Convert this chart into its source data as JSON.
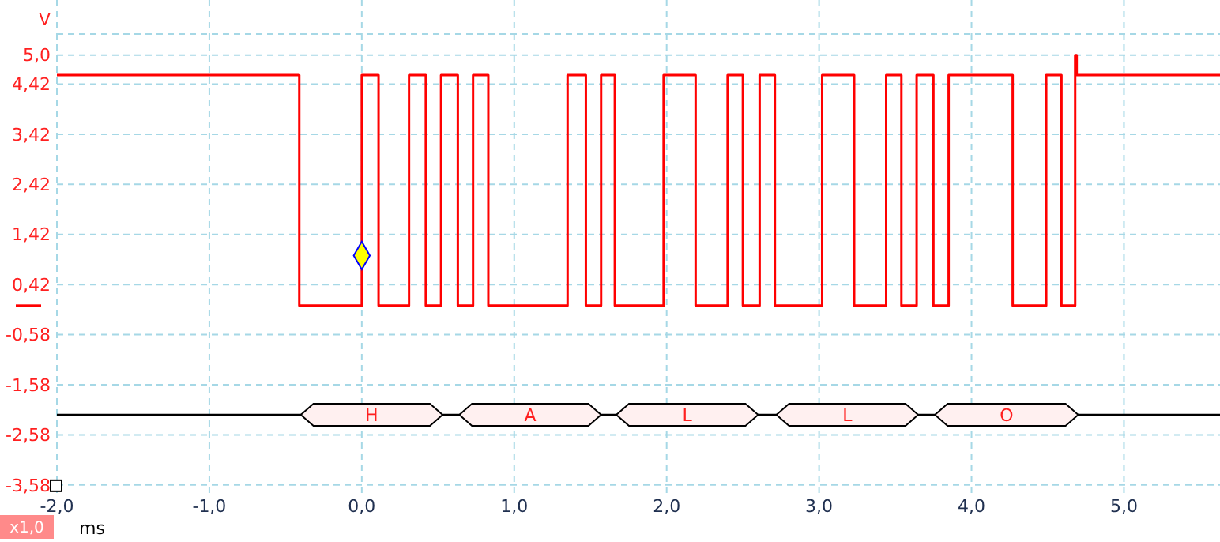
{
  "chart_data": {
    "type": "step",
    "ylabel": "V",
    "xlabel": "ms",
    "annotations": [
      "x1,0"
    ],
    "xlim": [
      -2,
      5.63
    ],
    "ylim": [
      -3.74,
      6.1
    ],
    "xticks": [
      {
        "value": -2,
        "label": "-2,0"
      },
      {
        "value": -1,
        "label": "-1,0"
      },
      {
        "value": 0,
        "label": "0,0"
      },
      {
        "value": 1,
        "label": "1,0"
      },
      {
        "value": 2,
        "label": "2,0"
      },
      {
        "value": 3,
        "label": "3,0"
      },
      {
        "value": 4,
        "label": "4,0"
      },
      {
        "value": 5,
        "label": "5,0"
      }
    ],
    "yticks": [
      {
        "value": 5.42,
        "label": null
      },
      {
        "value": 5,
        "label": "5,0"
      },
      {
        "value": 4.42,
        "label": "4,42"
      },
      {
        "value": 3.42,
        "label": "3,42"
      },
      {
        "value": 2.42,
        "label": "2,42"
      },
      {
        "value": 1.42,
        "label": "1,42"
      },
      {
        "value": 0.42,
        "label": "0,42"
      },
      {
        "value": -0.58,
        "label": "-0,58"
      },
      {
        "value": -1.58,
        "label": "-1,58"
      },
      {
        "value": -2.58,
        "label": "-2,58"
      },
      {
        "value": -3.58,
        "label": "-3,58"
      }
    ],
    "grid": true,
    "line_style": "solid",
    "series": [
      {
        "color": "#ff0000",
        "x": [
          -2,
          -0.41,
          0,
          0.11,
          0.31,
          0.42,
          0.52,
          0.63,
          0.73,
          0.83,
          1.35,
          1.47,
          1.57,
          1.66,
          1.98,
          2.19,
          2.4,
          2.5,
          2.61,
          2.71,
          3.02,
          3.23,
          3.44,
          3.54,
          3.64,
          3.75,
          3.85,
          4.27,
          4.49,
          4.59,
          4.68,
          4.69,
          5.63
        ],
        "values": [
          4.6,
          0,
          4.6,
          0,
          4.6,
          0,
          4.6,
          0,
          4.6,
          0,
          4.6,
          0,
          4.6,
          0,
          4.6,
          0,
          4.6,
          0,
          4.6,
          0,
          4.6,
          0,
          4.6,
          0,
          4.6,
          0,
          4.6,
          0,
          4.6,
          0,
          5.0,
          4.6,
          4.6
        ]
      },
      {
        "type": "scatter",
        "color": "#ffff00",
        "marker": "diamond",
        "x": [
          0
        ],
        "values": [
          1.0
        ]
      }
    ],
    "ref_lines": [
      {
        "axis": "y",
        "value": -2.18,
        "color": "#000000"
      }
    ],
    "bands": [
      {
        "axis": "x",
        "from": -0.4,
        "to": 0.53,
        "label": "H",
        "color": "#fff0f0"
      },
      {
        "axis": "x",
        "from": 0.64,
        "to": 1.57,
        "label": "A",
        "color": "#fff0f0"
      },
      {
        "axis": "x",
        "from": 1.67,
        "to": 2.6,
        "label": "L",
        "color": "#fff0f0"
      },
      {
        "axis": "x",
        "from": 2.72,
        "to": 3.65,
        "label": "L",
        "color": "#fff0f0"
      },
      {
        "axis": "x",
        "from": 3.76,
        "to": 4.7,
        "label": "O",
        "color": "#fff0f0"
      }
    ]
  }
}
